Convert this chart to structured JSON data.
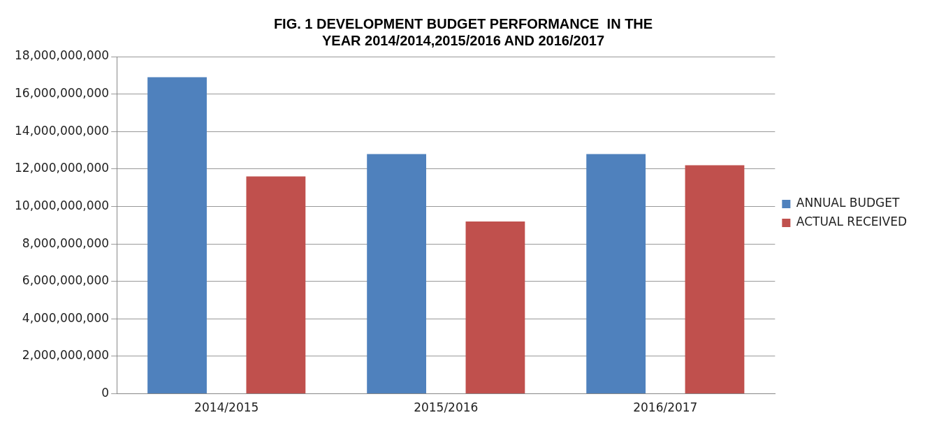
{
  "chart_data": {
    "type": "bar",
    "title": "FIG. 1 DEVELOPMENT BUDGET PERFORMANCE  IN THE YEAR 2014/2014,2015/2016 AND 2016/2017",
    "categories": [
      "2014/2015",
      "2015/2016",
      "2016/2017"
    ],
    "series": [
      {
        "name": "ANNUAL BUDGET",
        "color": "#4f81bd",
        "values": [
          16900000000,
          12800000000,
          12800000000
        ]
      },
      {
        "name": "ACTUAL RECEIVED",
        "color": "#c0504d",
        "values": [
          11600000000,
          9200000000,
          12200000000
        ]
      }
    ],
    "ylim": [
      0,
      18000000000
    ],
    "yticks": [
      {
        "value": 0,
        "label": "0"
      },
      {
        "value": 2000000000,
        "label": "2,000,000,000"
      },
      {
        "value": 4000000000,
        "label": "4,000,000,000"
      },
      {
        "value": 6000000000,
        "label": "6,000,000,000"
      },
      {
        "value": 8000000000,
        "label": "8,000,000,000"
      },
      {
        "value": 10000000000,
        "label": "10,000,000,000"
      },
      {
        "value": 12000000000,
        "label": "12,000,000,000"
      },
      {
        "value": 14000000000,
        "label": "14,000,000,000"
      },
      {
        "value": 16000000000,
        "label": "16,000,000,000"
      },
      {
        "value": 18000000000,
        "label": "18,000,000,000"
      }
    ],
    "grid": "y",
    "legend": "right"
  }
}
